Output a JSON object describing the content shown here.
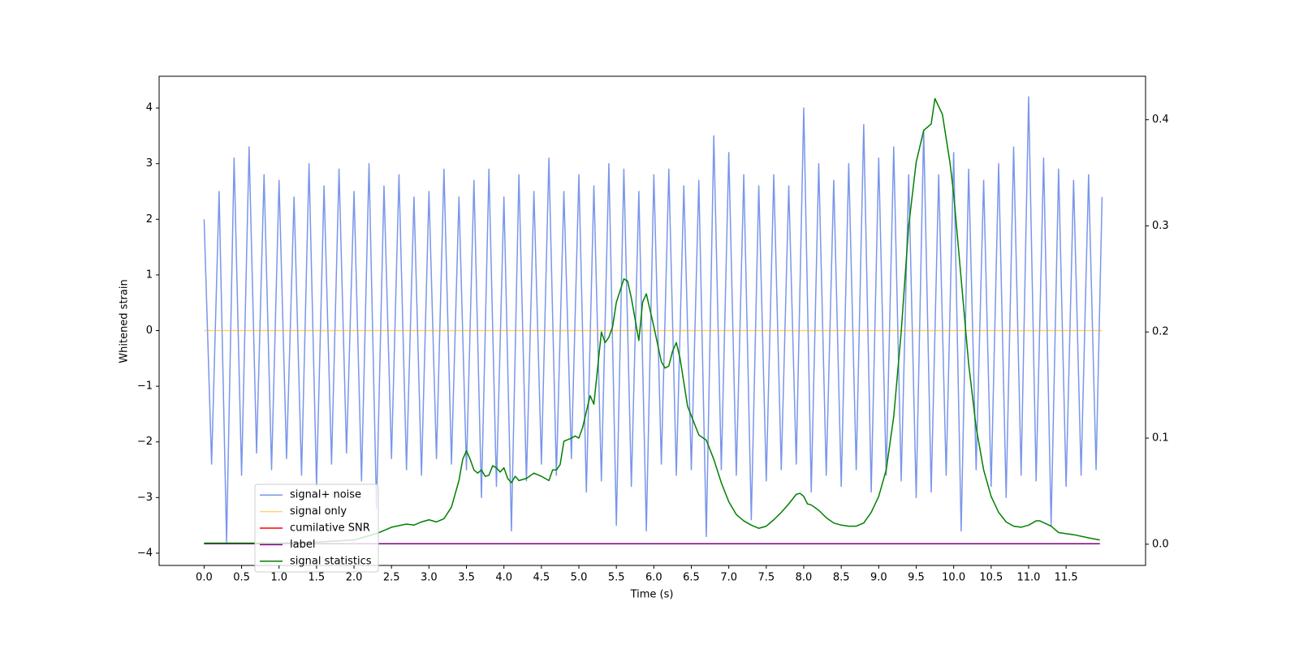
{
  "chart_data": {
    "type": "line",
    "xlabel": "Time (s)",
    "ylabel": "Whitened strain",
    "xlim": [
      -0.6,
      12.56
    ],
    "ylim": [
      -4.22,
      4.57
    ],
    "y2lim": [
      -0.02,
      0.441
    ],
    "xticks": [
      {
        "value": 0,
        "label": "0.0"
      },
      0.5,
      {
        "value": 1,
        "label": "1.0"
      },
      1.5,
      {
        "value": 2,
        "label": "2.0"
      },
      2.5,
      {
        "value": 3,
        "label": "3.0"
      },
      3.5,
      {
        "value": 4,
        "label": "4.0"
      },
      4.5,
      {
        "value": 5,
        "label": "5.0"
      },
      5.5,
      {
        "value": 6,
        "label": "6.0"
      },
      6.5,
      {
        "value": 7,
        "label": "7.0"
      },
      7.5,
      {
        "value": 8,
        "label": "8.0"
      },
      8.5,
      {
        "value": 9,
        "label": "9.0"
      },
      9.5,
      {
        "value": 10,
        "label": "10.0"
      },
      10.5,
      {
        "value": 11,
        "label": "11.0"
      },
      11.5
    ],
    "yticks": [
      {
        "value": -4,
        "label": "−4"
      },
      {
        "value": -3,
        "label": "−3"
      },
      {
        "value": -2,
        "label": "−2"
      },
      {
        "value": -1,
        "label": "−1"
      },
      0,
      1,
      2,
      3,
      4
    ],
    "y2ticks": [
      {
        "value": 0,
        "label": "0.0"
      },
      0.1,
      0.2,
      0.3,
      0.4
    ],
    "legend": "lower left",
    "series": [
      {
        "name": "signal+ noise",
        "color": "#4169e1",
        "alpha": 0.7,
        "axis": "y",
        "x": [
          0.0,
          0.1,
          0.2,
          0.3,
          0.4,
          0.5,
          0.6,
          0.7,
          0.8,
          0.9,
          1.0,
          1.1,
          1.2,
          1.3,
          1.4,
          1.5,
          1.6,
          1.7,
          1.8,
          1.9,
          2.0,
          2.1,
          2.2,
          2.3,
          2.4,
          2.5,
          2.6,
          2.7,
          2.8,
          2.9,
          3.0,
          3.1,
          3.2,
          3.3,
          3.4,
          3.5,
          3.6,
          3.7,
          3.8,
          3.9,
          4.0,
          4.1,
          4.2,
          4.3,
          4.4,
          4.5,
          4.6,
          4.7,
          4.8,
          4.9,
          5.0,
          5.1,
          5.2,
          5.3,
          5.4,
          5.5,
          5.6,
          5.7,
          5.8,
          5.9,
          6.0,
          6.1,
          6.2,
          6.3,
          6.4,
          6.5,
          6.6,
          6.7,
          6.8,
          6.9,
          7.0,
          7.1,
          7.2,
          7.3,
          7.4,
          7.5,
          7.6,
          7.7,
          7.8,
          7.9,
          8.0,
          8.1,
          8.2,
          8.3,
          8.4,
          8.5,
          8.6,
          8.7,
          8.8,
          8.9,
          9.0,
          9.1,
          9.2,
          9.3,
          9.4,
          9.5,
          9.6,
          9.7,
          9.8,
          9.9,
          10.0,
          10.1,
          10.2,
          10.3,
          10.4,
          10.5,
          10.6,
          10.7,
          10.8,
          10.9,
          11.0,
          11.1,
          11.2,
          11.3,
          11.4,
          11.5,
          11.6,
          11.7,
          11.8,
          11.9,
          11.98
        ],
        "values": [
          2.0,
          -2.4,
          2.5,
          -3.8,
          3.1,
          -2.6,
          3.3,
          -2.2,
          2.8,
          -2.5,
          2.7,
          -2.3,
          2.4,
          -2.6,
          3.0,
          -2.8,
          2.6,
          -2.4,
          2.9,
          -2.2,
          2.5,
          -2.7,
          3.0,
          -3.2,
          2.6,
          -2.3,
          2.8,
          -2.5,
          2.4,
          -2.6,
          2.5,
          -2.3,
          2.9,
          -2.4,
          2.4,
          -2.5,
          2.7,
          -3.0,
          2.9,
          -2.8,
          2.4,
          -3.6,
          2.8,
          -2.7,
          2.5,
          -2.4,
          3.1,
          -2.6,
          2.5,
          -2.3,
          2.8,
          -2.9,
          2.6,
          -2.7,
          3.0,
          -3.5,
          2.9,
          -2.8,
          2.5,
          -3.6,
          2.8,
          -2.4,
          2.9,
          -2.6,
          2.6,
          -2.5,
          2.7,
          -3.7,
          3.5,
          -2.5,
          3.2,
          -2.6,
          2.8,
          -3.4,
          2.6,
          -2.7,
          2.8,
          -2.5,
          2.6,
          -2.4,
          4.0,
          -2.9,
          3.0,
          -2.6,
          2.7,
          -2.8,
          3.0,
          -2.5,
          3.7,
          -2.9,
          3.1,
          -2.6,
          3.3,
          -2.7,
          2.8,
          -3.0,
          3.6,
          -2.9,
          2.8,
          -2.6,
          3.2,
          -3.6,
          2.9,
          -2.5,
          2.7,
          -2.8,
          3.0,
          -3.0,
          3.3,
          -2.6,
          4.2,
          -2.7,
          3.1,
          -3.5,
          2.9,
          -2.8,
          2.7,
          -2.6,
          2.8,
          -2.5,
          2.4
        ]
      },
      {
        "name": "signal only",
        "color": "#ffa500",
        "alpha": 0.5,
        "axis": "y",
        "x": [
          0.0,
          11.98
        ],
        "values": [
          0,
          0
        ]
      },
      {
        "name": "cumilative SNR",
        "color": "#ff0000",
        "alpha": 1,
        "axis": "y",
        "x": [
          0.0,
          11.95
        ],
        "values": [
          -3.83,
          -3.83
        ]
      },
      {
        "name": "label",
        "color": "#800080",
        "alpha": 1,
        "axis": "y",
        "x": [
          0.0,
          11.95
        ],
        "values": [
          -3.83,
          -3.83
        ]
      },
      {
        "name": "signal statistics",
        "color": "#008000",
        "alpha": 1,
        "axis": "y2",
        "x": [
          0.0,
          0.5,
          1.0,
          1.5,
          2.0,
          2.3,
          2.5,
          2.7,
          2.8,
          2.9,
          3.0,
          3.1,
          3.2,
          3.3,
          3.4,
          3.45,
          3.5,
          3.55,
          3.6,
          3.65,
          3.7,
          3.75,
          3.8,
          3.85,
          3.9,
          3.95,
          4.0,
          4.05,
          4.1,
          4.15,
          4.2,
          4.3,
          4.4,
          4.5,
          4.6,
          4.65,
          4.7,
          4.75,
          4.8,
          4.9,
          4.95,
          5.0,
          5.05,
          5.15,
          5.2,
          5.3,
          5.35,
          5.4,
          5.45,
          5.5,
          5.6,
          5.65,
          5.7,
          5.8,
          5.85,
          5.9,
          6.0,
          6.1,
          6.15,
          6.2,
          6.25,
          6.3,
          6.35,
          6.45,
          6.6,
          6.7,
          6.8,
          6.9,
          7.0,
          7.1,
          7.2,
          7.3,
          7.4,
          7.5,
          7.6,
          7.7,
          7.8,
          7.9,
          7.95,
          8.0,
          8.05,
          8.1,
          8.2,
          8.3,
          8.4,
          8.5,
          8.6,
          8.7,
          8.8,
          8.9,
          9.0,
          9.1,
          9.2,
          9.3,
          9.4,
          9.5,
          9.6,
          9.7,
          9.75,
          9.85,
          9.95,
          10.0,
          10.1,
          10.2,
          10.3,
          10.4,
          10.5,
          10.6,
          10.7,
          10.8,
          10.9,
          11.0,
          11.1,
          11.15,
          11.3,
          11.4,
          11.6,
          11.8,
          11.95
        ],
        "values": [
          0.001,
          0.001,
          0.001,
          0.002,
          0.004,
          0.01,
          0.016,
          0.019,
          0.018,
          0.021,
          0.023,
          0.021,
          0.024,
          0.035,
          0.06,
          0.08,
          0.088,
          0.08,
          0.07,
          0.067,
          0.07,
          0.064,
          0.065,
          0.074,
          0.072,
          0.068,
          0.072,
          0.062,
          0.058,
          0.064,
          0.06,
          0.062,
          0.067,
          0.064,
          0.06,
          0.07,
          0.07,
          0.075,
          0.097,
          0.1,
          0.102,
          0.1,
          0.11,
          0.14,
          0.132,
          0.2,
          0.19,
          0.195,
          0.205,
          0.228,
          0.25,
          0.248,
          0.232,
          0.192,
          0.228,
          0.236,
          0.205,
          0.172,
          0.166,
          0.168,
          0.182,
          0.19,
          0.175,
          0.13,
          0.103,
          0.098,
          0.08,
          0.058,
          0.04,
          0.028,
          0.022,
          0.018,
          0.015,
          0.017,
          0.023,
          0.03,
          0.038,
          0.047,
          0.048,
          0.045,
          0.038,
          0.037,
          0.032,
          0.025,
          0.02,
          0.018,
          0.017,
          0.017,
          0.02,
          0.03,
          0.045,
          0.07,
          0.12,
          0.2,
          0.3,
          0.36,
          0.39,
          0.396,
          0.42,
          0.405,
          0.36,
          0.33,
          0.25,
          0.17,
          0.11,
          0.07,
          0.045,
          0.03,
          0.021,
          0.017,
          0.016,
          0.018,
          0.022,
          0.022,
          0.017,
          0.011,
          0.009,
          0.006,
          0.004
        ]
      }
    ]
  }
}
